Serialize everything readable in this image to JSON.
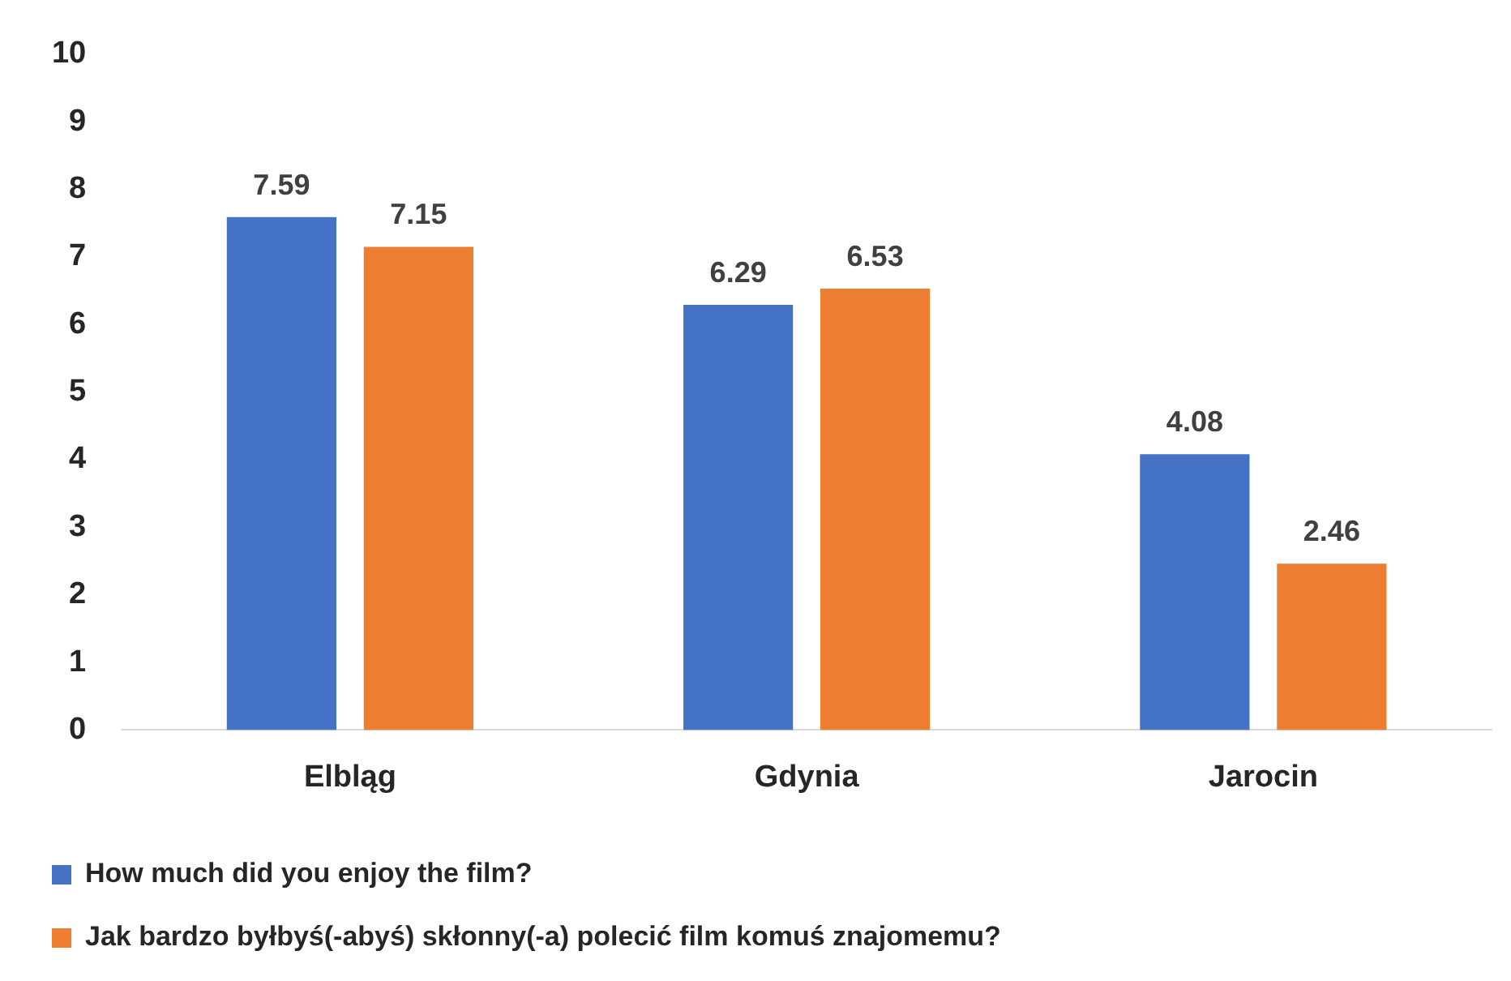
{
  "chart_data": {
    "type": "bar",
    "categories": [
      "Elbląg",
      "Gdynia",
      "Jarocin"
    ],
    "series": [
      {
        "name": "How much did you enjoy the film?",
        "color": "#4472c4",
        "values": [
          7.59,
          6.29,
          4.08
        ]
      },
      {
        "name": "Jak bardzo byłbyś(-abyś) skłonny(-a) polecić film komuś znajomemu?",
        "color": "#ed7d31",
        "values": [
          7.15,
          6.53,
          2.46
        ]
      }
    ],
    "ylim": [
      0,
      10
    ],
    "yticks": [
      0,
      1,
      2,
      3,
      4,
      5,
      6,
      7,
      8,
      9,
      10
    ],
    "legend": "bottom",
    "data_labels": true
  }
}
